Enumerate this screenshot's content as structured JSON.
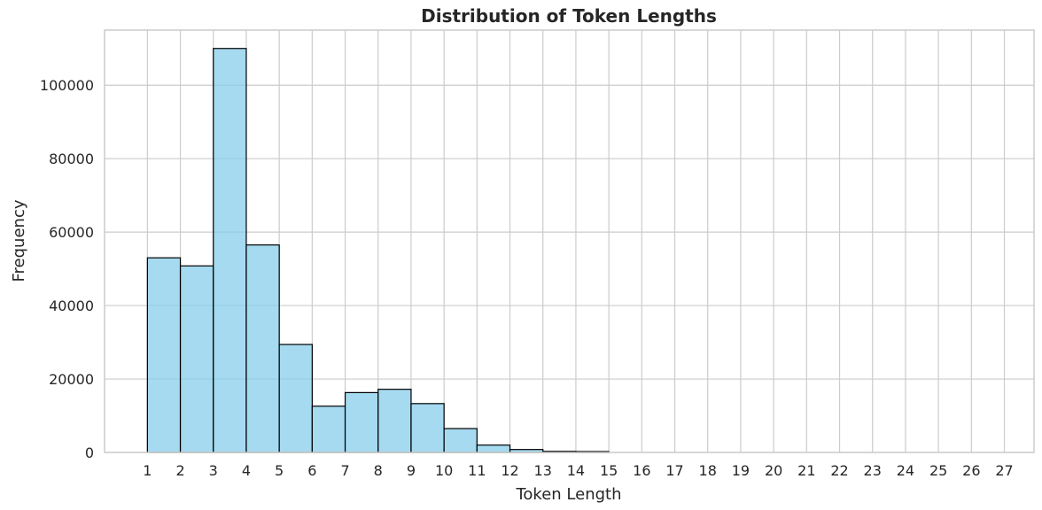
{
  "chart_data": {
    "type": "bar",
    "title": "Distribution of Token Lengths",
    "xlabel": "Token Length",
    "ylabel": "Frequency",
    "bin_edges": [
      1,
      2,
      3,
      4,
      5,
      6,
      7,
      8,
      9,
      10,
      11,
      12,
      13,
      14,
      15
    ],
    "values": [
      53000,
      50800,
      110000,
      56500,
      29400,
      12600,
      16300,
      17200,
      13300,
      6500,
      2000,
      800,
      300,
      250
    ],
    "x_ticks": [
      1,
      2,
      3,
      4,
      5,
      6,
      7,
      8,
      9,
      10,
      11,
      12,
      13,
      14,
      15,
      16,
      17,
      18,
      19,
      20,
      21,
      22,
      23,
      24,
      25,
      26,
      27
    ],
    "y_ticks": [
      0,
      20000,
      40000,
      60000,
      80000,
      100000
    ],
    "xlim": [
      -0.3,
      27.9
    ],
    "ylim": [
      0,
      115000
    ],
    "grid": true,
    "bar_color": "#87ceeb",
    "bar_edge_color": "#000000"
  }
}
